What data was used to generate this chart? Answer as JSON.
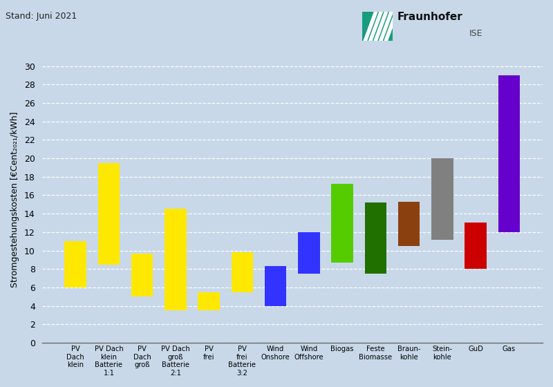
{
  "categories": [
    "PV\nDach\nklein",
    "PV Dach\nklein\nBatterie\n1:1",
    "PV\nDach\ngroß",
    "PV Dach\ngroß\nBatterie\n2:1",
    "PV\nfrei",
    "PV\nfrei\nBatterie\n3:2",
    "Wind\nOnshore",
    "Wind\nOffshore",
    "Biogas",
    "Feste\nBiomasse",
    "Braun-\nkohle",
    "Stein-\nkohle",
    "GuD",
    "Gas"
  ],
  "bar_min": [
    6.0,
    8.5,
    5.0,
    3.5,
    3.5,
    5.5,
    4.0,
    7.5,
    8.7,
    7.5,
    10.5,
    11.2,
    8.0,
    12.0
  ],
  "bar_max": [
    11.0,
    19.5,
    9.7,
    14.5,
    5.5,
    9.8,
    8.3,
    12.0,
    17.2,
    15.2,
    15.3,
    20.0,
    13.0,
    29.0
  ],
  "colors": [
    "#FFE800",
    "#FFE800",
    "#FFE800",
    "#FFE800",
    "#FFE800",
    "#FFE800",
    "#3333FF",
    "#3333FF",
    "#55CC00",
    "#207000",
    "#8B4010",
    "#808080",
    "#CC0000",
    "#6600CC"
  ],
  "ylabel": "Stromgestehungskosten [€Cent₂₀₂₁/kWh]",
  "ylim": [
    0,
    31
  ],
  "yticks": [
    0,
    2,
    4,
    6,
    8,
    10,
    12,
    14,
    16,
    18,
    20,
    22,
    24,
    26,
    28,
    30
  ],
  "background_color": "#C8D8E8",
  "title_text": "Stand: Juni 2021",
  "fraunhofer_green": "#179C7D",
  "bar_width": 0.65
}
